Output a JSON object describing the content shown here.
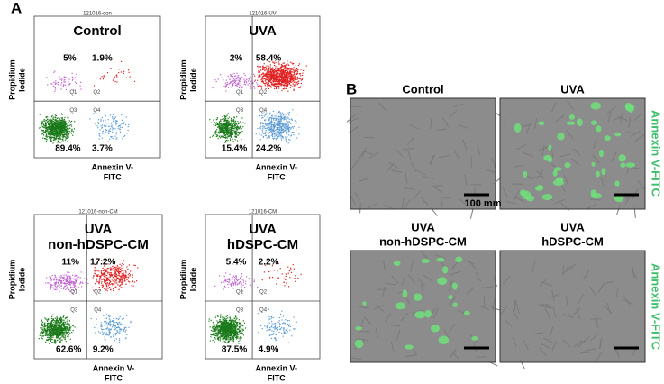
{
  "panel_a": {
    "label": "A",
    "plots": [
      {
        "sample": "121016-con",
        "title": [
          "Control"
        ],
        "quadrants": [
          "5%",
          "1.9%",
          "89.4%",
          "3.7%"
        ],
        "quadrant_ids": [
          "Q1",
          "Q2",
          "Q3",
          "Q4"
        ],
        "y_label": [
          "Propidium",
          "Iodide"
        ],
        "x_label": [
          "Annexin V-",
          "FITC"
        ]
      },
      {
        "sample": "121016-UV",
        "title": [
          "UVA"
        ],
        "quadrants": [
          "2%",
          "58.4%",
          "15.4%",
          "24.2%"
        ],
        "quadrant_ids": [
          "Q1",
          "Q2",
          "Q3",
          "Q4"
        ],
        "y_label": [
          "Propidium",
          "Iodide"
        ],
        "x_label": [
          "Annexin V-",
          "FITC"
        ]
      },
      {
        "sample": "121016-non-CM",
        "title": [
          "UVA",
          "non-hDSPC-CM"
        ],
        "quadrants": [
          "11%",
          "17.2%",
          "62.6%",
          "9.2%"
        ],
        "quadrant_ids": [
          "Q1",
          "Q2",
          "Q3",
          "Q4"
        ],
        "y_label": [
          "Propidium",
          "Iodide"
        ],
        "x_label": [
          "Annexin V-",
          "FITC"
        ]
      },
      {
        "sample": "121016-CM",
        "title": [
          "UVA",
          "hDSPC-CM"
        ],
        "quadrants": [
          "5.4%",
          "2.2%",
          "87.5%",
          "4.9%"
        ],
        "quadrant_ids": [
          "Q1",
          "Q2",
          "Q3",
          "Q4"
        ],
        "y_label": [
          "Propidium",
          "Iodide"
        ],
        "x_label": [
          "Annexin V-",
          "FITC"
        ]
      }
    ]
  },
  "panel_b": {
    "label": "B",
    "images": [
      {
        "title": [
          "Control"
        ]
      },
      {
        "title": [
          "UVA"
        ]
      },
      {
        "title": [
          "UVA",
          "non-hDSPC-CM"
        ]
      },
      {
        "title": [
          "UVA",
          "hDSPC-CM"
        ]
      }
    ],
    "row_labels": [
      "Annexin V-FITC",
      "Annexin V-FITC"
    ],
    "scale_label": "100 mm"
  }
}
